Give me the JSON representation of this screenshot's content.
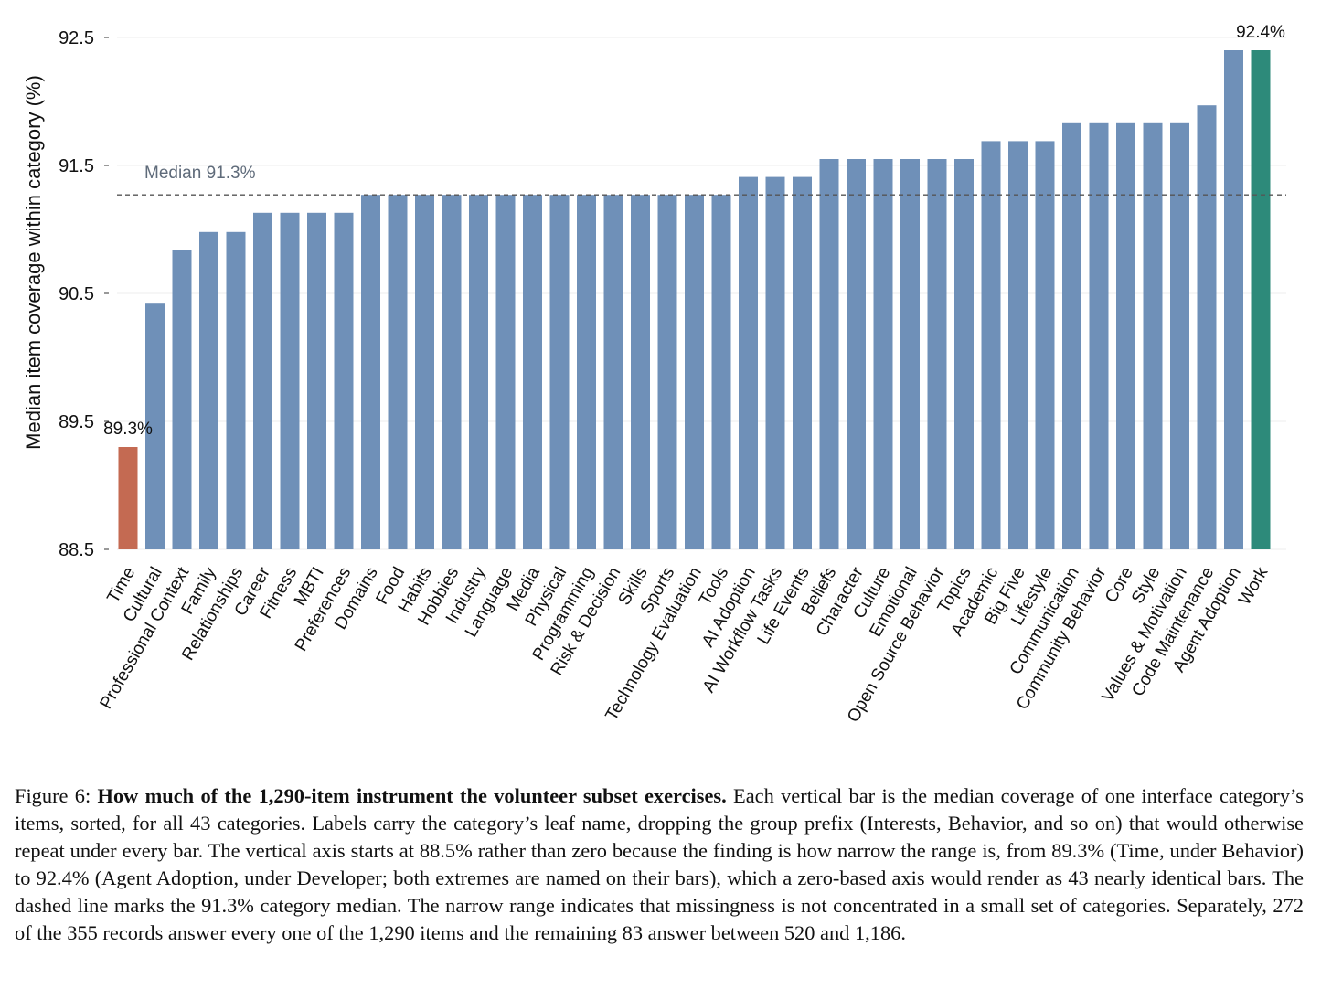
{
  "chart_data": {
    "type": "bar",
    "ylabel": "Median item coverage within category (%)",
    "ylim": [
      88.5,
      92.5
    ],
    "yticks": [
      88.5,
      89.5,
      90.5,
      91.5,
      92.5
    ],
    "ytick_labels": [
      "88.5",
      "89.5",
      "90.5",
      "91.5",
      "92.5"
    ],
    "grid": "horizontal",
    "median_line": {
      "value": 91.27,
      "label": "Median 91.3%"
    },
    "bar_labels": [
      {
        "index": 0,
        "text": "89.3%"
      },
      {
        "index": 42,
        "text": "92.4%"
      }
    ],
    "colors": {
      "default": "#6f90b8",
      "min": "#c46a52",
      "max": "#2d8a7a",
      "median_line": "#555555",
      "median_text": "#5f6b7a"
    },
    "categories": [
      "Time",
      "Cultural",
      "Professional Context",
      "Family",
      "Relationships",
      "Career",
      "Fitness",
      "MBTI",
      "Preferences",
      "Domains",
      "Food",
      "Habits",
      "Hobbies",
      "Industry",
      "Language",
      "Media",
      "Physical",
      "Programming",
      "Risk & Decision",
      "Skills",
      "Sports",
      "Technology Evaluation",
      "Tools",
      "AI Adoption",
      "AI Workflow Tasks",
      "Life Events",
      "Beliefs",
      "Character",
      "Culture",
      "Emotional",
      "Open Source Behavior",
      "Topics",
      "Academic",
      "Big Five",
      "Lifestyle",
      "Communication",
      "Community Behavior",
      "Core",
      "Style",
      "Values & Motivation",
      "Code Maintenance",
      "Agent Adoption",
      "Work"
    ],
    "values": [
      89.3,
      90.42,
      90.84,
      90.98,
      90.98,
      91.13,
      91.13,
      91.13,
      91.13,
      91.27,
      91.27,
      91.27,
      91.27,
      91.27,
      91.27,
      91.27,
      91.27,
      91.27,
      91.27,
      91.27,
      91.27,
      91.27,
      91.27,
      91.41,
      91.41,
      91.41,
      91.55,
      91.55,
      91.55,
      91.55,
      91.55,
      91.55,
      91.69,
      91.69,
      91.69,
      91.83,
      91.83,
      91.83,
      91.83,
      91.83,
      91.97,
      92.4,
      92.4
    ]
  },
  "caption": {
    "label": "Figure 6:",
    "title": "How much of the 1,290-item instrument the volunteer subset exercises.",
    "body": "Each vertical bar is the median coverage of one interface category’s items, sorted, for all 43 categories. Labels carry the category’s leaf name, dropping the group prefix (Interests, Behavior, and so on) that would otherwise repeat under every bar. The vertical axis starts at 88.5% rather than zero because the finding is how narrow the range is, from 89.3% (Time, under Behavior) to 92.4% (Agent Adoption, under Developer; both extremes are named on their bars), which a zero-based axis would render as 43 nearly identical bars. The dashed line marks the 91.3% category median. The narrow range indicates that missingness is not concentrated in a small set of categories. Separately, 272 of the 355 records answer every one of the 1,290 items and the remaining 83 answer between 520 and 1,186."
  }
}
